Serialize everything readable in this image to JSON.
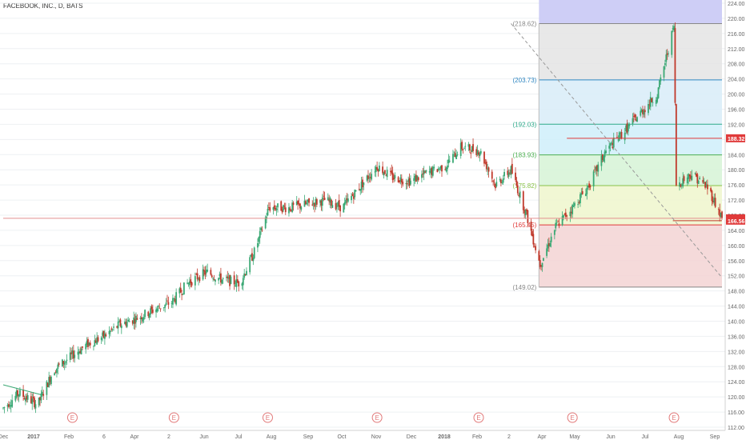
{
  "header": {
    "title": "FACEBOOK, INC., D, BATS"
  },
  "colors": {
    "up": "#3aa874",
    "down": "#c0392b",
    "grid": "#eef0f3",
    "axis_text": "#666666",
    "price_tag_red": "#e03a3a",
    "earnings": "#e27a7a"
  },
  "chart_data": {
    "type": "candlestick",
    "title": "FACEBOOK, INC., D, BATS",
    "y_axis": {
      "ticks": [
        "112.00",
        "116.00",
        "120.00",
        "124.00",
        "128.00",
        "132.00",
        "136.00",
        "140.00",
        "144.00",
        "148.00",
        "152.00",
        "156.00",
        "160.00",
        "164.00",
        "168.00",
        "172.00",
        "176.00",
        "180.00",
        "184.00",
        "188.00",
        "192.00",
        "196.00",
        "200.00",
        "204.00",
        "208.00",
        "212.00",
        "216.00",
        "220.00",
        "224.00"
      ],
      "min": 112,
      "max": 224,
      "position": "right"
    },
    "x_axis": {
      "ticks": [
        "Dec",
        "2017",
        "Feb",
        "6",
        "Apr",
        "2",
        "Jun",
        "Jul",
        "Aug",
        "Sep",
        "Oct",
        "Nov",
        "Dec",
        "2018",
        "Feb",
        "2",
        "Apr",
        "May",
        "Jun",
        "Jul",
        "Aug",
        "Sep"
      ],
      "range": [
        "2016-12-01",
        "2018-09-06"
      ]
    },
    "price_tags": [
      {
        "value": 188.32,
        "label": "188.32"
      },
      {
        "value": 167.18,
        "label": "167.18"
      },
      {
        "value": 166.56,
        "label": "166.56"
      }
    ],
    "fibonacci": {
      "from_date": "2018-03-26",
      "to_date": "2018-09-06",
      "levels": [
        {
          "value": 218.62,
          "label": "(218.62)"
        },
        {
          "value": 203.73,
          "label": "(203.73)"
        },
        {
          "value": 192.03,
          "label": "(192.03)"
        },
        {
          "value": 183.93,
          "label": "(183.93)"
        },
        {
          "value": 175.82,
          "label": "(175.82)"
        },
        {
          "value": 165.45,
          "label": "(165.45)"
        },
        {
          "value": 149.02,
          "label": "(149.02)"
        }
      ],
      "zone_colors": [
        "#c9c9f5",
        "#e4e4e4",
        "#d8ecf8",
        "#cfeefa",
        "#d6f3d6",
        "#eef6cc",
        "#f3d3d3"
      ]
    },
    "horizontal_lines": [
      {
        "value": 167.18,
        "color": "#e38f8f",
        "from_date": "2016-12-01",
        "to_date": "2018-09-06"
      },
      {
        "value": 188.32,
        "color": "#e03a3a",
        "from_date": "2018-04-20",
        "to_date": "2018-09-06"
      },
      {
        "value": 166.56,
        "color": "#c0392b",
        "from_date": "2018-07-24",
        "to_date": "2018-09-06"
      }
    ],
    "trend_lines": [
      {
        "from": [
          "2018-03-01",
          218.62
        ],
        "to": [
          "2018-09-06",
          151.5
        ],
        "style": "dashed",
        "color": "#999999"
      },
      {
        "from": [
          "2016-12-01",
          123.2
        ],
        "to": [
          "2017-01-05",
          120.5
        ],
        "style": "solid",
        "color": "#3aa874"
      }
    ],
    "earnings_markers": {
      "label": "E",
      "dates": [
        "2017-02-01",
        "2017-05-03",
        "2017-07-26",
        "2017-11-01",
        "2018-01-31",
        "2018-04-25",
        "2018-07-25"
      ]
    },
    "close_series": {
      "dates": [
        "2016-12-01",
        "2016-12-15",
        "2017-01-01",
        "2017-01-15",
        "2017-02-01",
        "2017-02-15",
        "2017-03-01",
        "2017-03-15",
        "2017-04-01",
        "2017-04-15",
        "2017-05-01",
        "2017-05-15",
        "2017-06-01",
        "2017-06-15",
        "2017-07-01",
        "2017-07-15",
        "2017-07-27",
        "2017-08-15",
        "2017-09-01",
        "2017-09-15",
        "2017-10-01",
        "2017-10-15",
        "2017-11-01",
        "2017-11-15",
        "2017-12-01",
        "2017-12-15",
        "2018-01-01",
        "2018-01-15",
        "2018-02-01",
        "2018-02-15",
        "2018-03-01",
        "2018-03-15",
        "2018-03-27",
        "2018-04-10",
        "2018-04-25",
        "2018-05-10",
        "2018-05-25",
        "2018-06-10",
        "2018-06-25",
        "2018-07-10",
        "2018-07-25",
        "2018-07-27",
        "2018-08-10",
        "2018-08-25",
        "2018-09-06"
      ],
      "values": [
        117,
        121,
        118,
        127,
        131,
        134,
        136,
        139,
        141,
        143,
        145,
        150,
        153,
        151,
        150,
        159,
        170,
        170,
        171,
        172,
        170,
        175,
        181,
        178,
        177,
        179,
        181,
        186,
        185,
        176,
        180,
        168,
        155,
        165,
        170,
        176,
        185,
        190,
        195,
        200,
        218,
        176,
        179,
        175,
        167.18
      ]
    }
  }
}
